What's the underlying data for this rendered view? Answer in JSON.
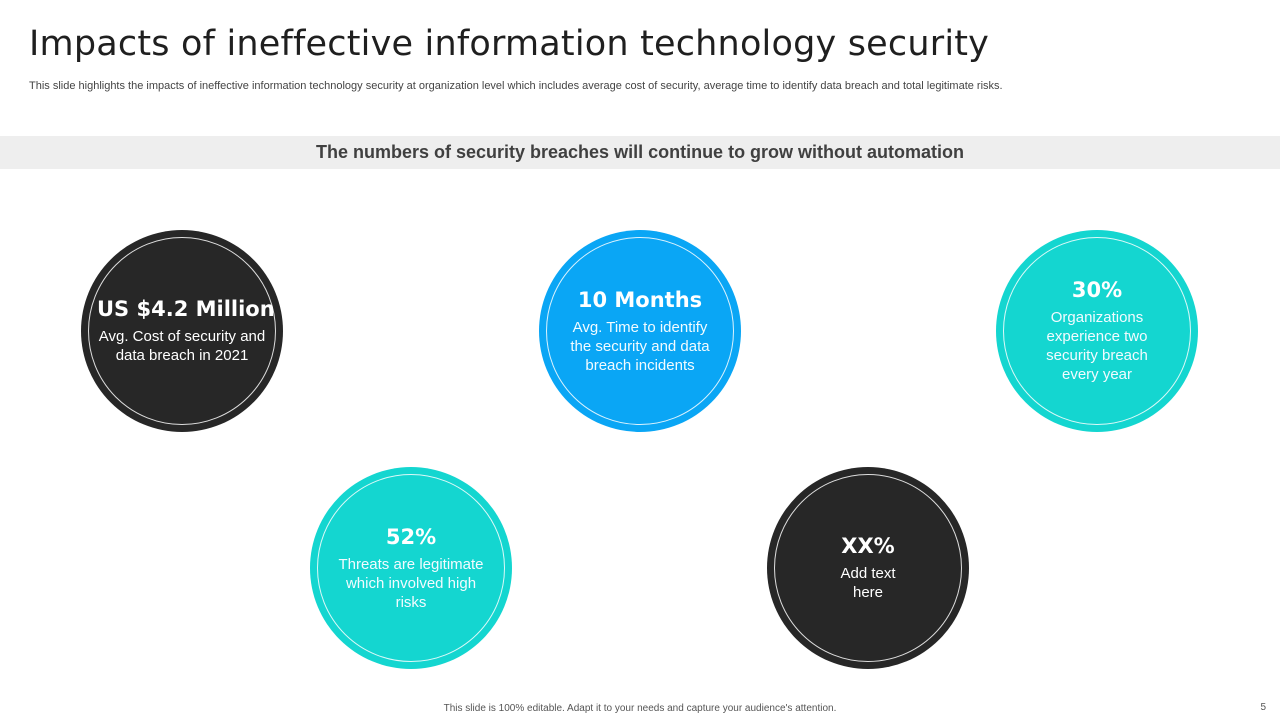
{
  "slide": {
    "title": "Impacts of ineffective  information technology security",
    "subtitle": "This slide highlights the impacts of ineffective information technology security at organization level which includes average cost of security, average time to identify data breach and total legitimate risks.",
    "banner": "The numbers of security breaches will continue to grow without automation"
  },
  "stats": [
    {
      "value": "US $4.2 Million",
      "description": "Avg. Cost of security and data breach in 2021",
      "color": "#272727"
    },
    {
      "value": "10 Months",
      "description": "Avg. Time to identify the security and data breach incidents",
      "color": "#0aa6f5"
    },
    {
      "value": "30%",
      "description": "Organizations experience two security breach every year",
      "color": "#14d6d0"
    },
    {
      "value": "52%",
      "description": "Threats are legitimate which involved high risks",
      "color": "#14d6d0"
    },
    {
      "value": "XX%",
      "description": "Add text here",
      "color": "#272727"
    }
  ],
  "footer": {
    "note": "This slide is 100% editable.  Adapt it to your needs and capture your audience's attention.",
    "page_number": "5"
  }
}
